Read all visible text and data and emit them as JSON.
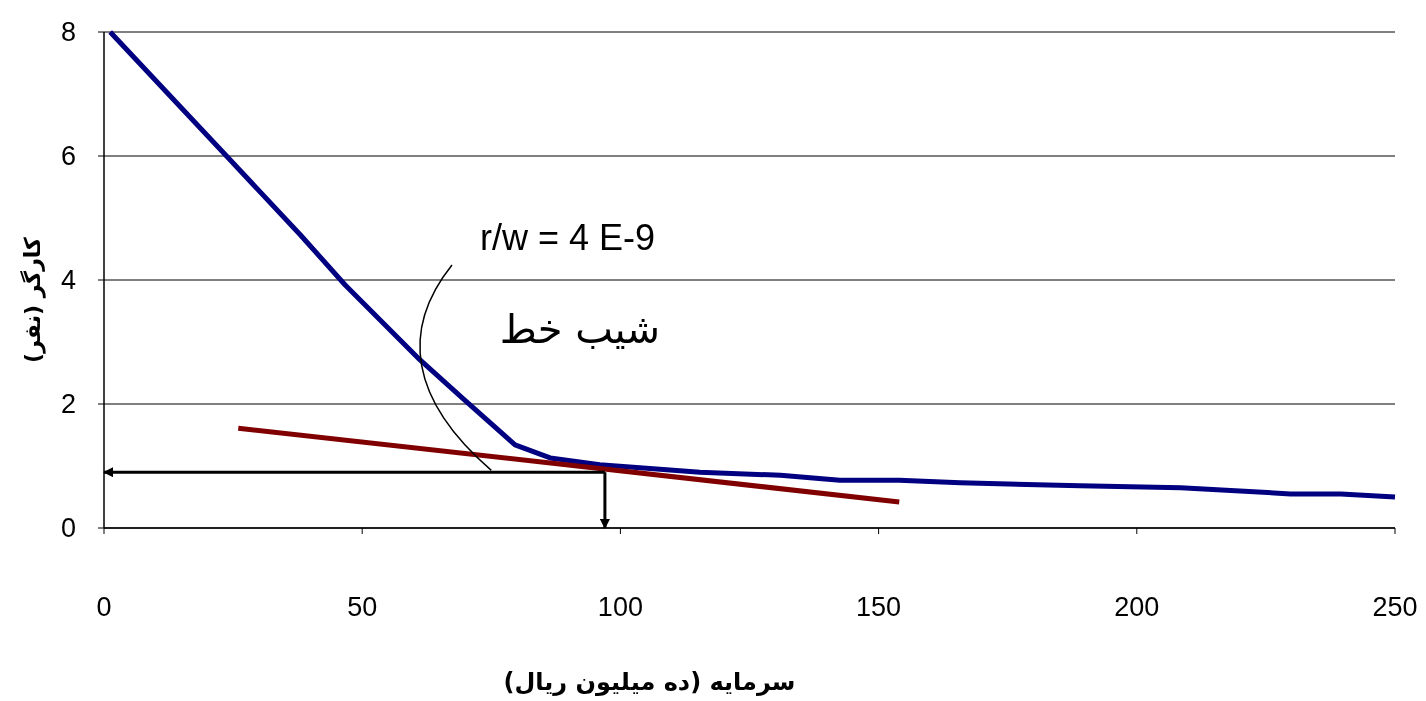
{
  "chart_data": {
    "type": "line",
    "xlabel": "سرمایه (ده میلیون ریال)",
    "ylabel": "کارگر (نفر)",
    "xlim": [
      0,
      250
    ],
    "ylim": [
      0,
      8
    ],
    "xticks": [
      0,
      50,
      100,
      150,
      200,
      250
    ],
    "yticks": [
      0,
      2,
      4,
      6,
      8
    ],
    "grid": "y",
    "series": [
      {
        "color": "#000080",
        "x": [
          1.2,
          24.4,
          38,
          46.7,
          61.2,
          69.9,
          79.6,
          86.4,
          96,
          115.4,
          131,
          142.5,
          154,
          165.8,
          189,
          208.5,
          229.8,
          239.5,
          250
        ],
        "values": [
          8,
          5.94,
          4.73,
          3.92,
          2.71,
          2.06,
          1.34,
          1.13,
          1.02,
          0.9,
          0.85,
          0.77,
          0.77,
          0.73,
          0.68,
          0.65,
          0.55,
          0.55,
          0.5
        ]
      },
      {
        "color": "#800000",
        "x": [
          26,
          154
        ],
        "values": [
          1.61,
          0.42
        ]
      }
    ],
    "ref_lines": [
      {
        "axis": "y",
        "value": 0.9,
        "color": "#000000"
      },
      {
        "axis": "x",
        "value": 97,
        "color": "#000000"
      }
    ],
    "annotations": [
      "r/w   = 4 E-9",
      {
        "text": "شیب خط",
        "x": 75,
        "y": 0.93
      }
    ]
  }
}
